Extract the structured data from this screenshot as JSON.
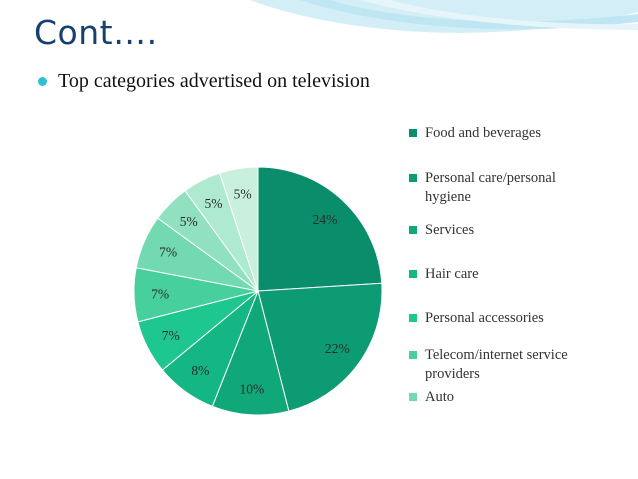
{
  "slide": {
    "title": "Cont….",
    "bullet": "Top categories advertised on television"
  },
  "colors": {
    "title": "#17406d",
    "bullet": "#2fc0d6",
    "wave": "#bfe6f3"
  },
  "chart_data": {
    "type": "pie",
    "title": "",
    "legend_position": "right",
    "slices": [
      {
        "label": "Food and beverages",
        "value": 24,
        "value_label": "24%",
        "color": "#0a8d6a"
      },
      {
        "label": "Personal care/personal hygiene",
        "value": 22,
        "value_label": "22%",
        "color": "#0c9b72"
      },
      {
        "label": "Services",
        "value": 10,
        "value_label": "10%",
        "color": "#10a879"
      },
      {
        "label": "Hair care",
        "value": 8,
        "value_label": "8%",
        "color": "#14b783"
      },
      {
        "label": "Personal accessories",
        "value": 7,
        "value_label": "7%",
        "color": "#1ec690"
      },
      {
        "label": "Telecom/internet service providers",
        "value": 7,
        "value_label": "7%",
        "color": "#48cf9e"
      },
      {
        "label": "Auto",
        "value": 7,
        "value_label": "7%",
        "color": "#73d9b1"
      },
      {
        "label": "",
        "value": 5,
        "value_label": "5%",
        "color": "#91e1c1"
      },
      {
        "label": "",
        "value": 5,
        "value_label": "5%",
        "color": "#aeead0"
      },
      {
        "label": "",
        "value": 5,
        "value_label": "5%",
        "color": "#c9f0df"
      }
    ]
  }
}
